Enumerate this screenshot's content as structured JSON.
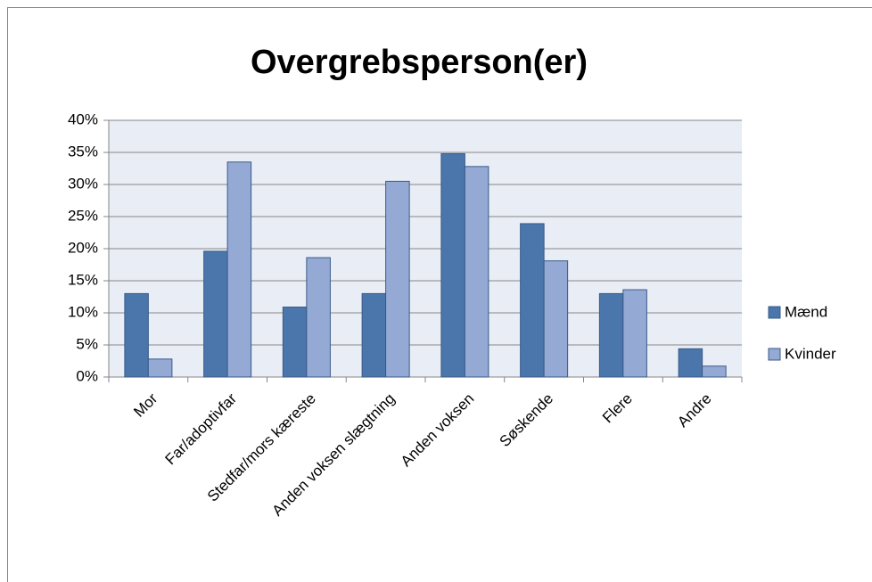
{
  "chart_data": {
    "type": "bar",
    "title": "Overgrebsperson(er)",
    "categories": [
      "Mor",
      "Far/adoptivfar",
      "Stedfar/mors kæreste",
      "Anden voksen slægtning",
      "Anden voksen",
      "Søskende",
      "Flere",
      "Andre"
    ],
    "series": [
      {
        "name": "Mænd",
        "color": "#4a76ab",
        "values": [
          13,
          19.6,
          10.9,
          13,
          34.8,
          23.9,
          13,
          4.4
        ]
      },
      {
        "name": "Kvinder",
        "color": "#94aad4",
        "values": [
          2.8,
          33.5,
          18.6,
          30.5,
          32.8,
          18.1,
          13.6,
          1.7
        ]
      }
    ],
    "ylim": [
      0,
      40
    ],
    "yticks": [
      {
        "value": 0,
        "label": "0%"
      },
      {
        "value": 5,
        "label": "5%"
      },
      {
        "value": 10,
        "label": "10%"
      },
      {
        "value": 15,
        "label": "15%"
      },
      {
        "value": 20,
        "label": "20%"
      },
      {
        "value": 25,
        "label": "25%"
      },
      {
        "value": 30,
        "label": "30%"
      },
      {
        "value": 35,
        "label": "35%"
      },
      {
        "value": 40,
        "label": "40%"
      }
    ],
    "grid": true,
    "legend": "right"
  }
}
